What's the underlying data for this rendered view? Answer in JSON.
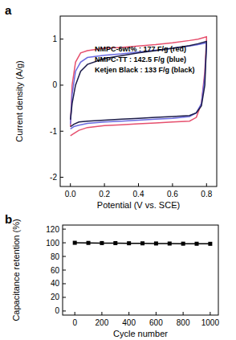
{
  "chart_data": [
    {
      "type": "line",
      "title": "a",
      "x_label": "Potential (V vs. SCE)",
      "y_label": "Current density (A/g)",
      "x": [
        0,
        0.01,
        0.03,
        0.06,
        0.1,
        0.2,
        0.3,
        0.4,
        0.5,
        0.6,
        0.7,
        0.75,
        0.8,
        0.8,
        0.79,
        0.77,
        0.74,
        0.7,
        0.6,
        0.5,
        0.4,
        0.3,
        0.2,
        0.1,
        0.05,
        0.02,
        0
      ],
      "series": [
        {
          "name": "NMPC-6wt% : 177 F/g (red)",
          "color": "#e6506e",
          "values": [
            -0.9,
            0.0,
            0.5,
            0.7,
            0.75,
            0.8,
            0.82,
            0.85,
            0.88,
            0.92,
            0.97,
            1.0,
            1.05,
            1.0,
            0.3,
            -0.4,
            -0.7,
            -0.78,
            -0.8,
            -0.82,
            -0.84,
            -0.86,
            -0.88,
            -0.92,
            -0.98,
            -1.05,
            -1.1
          ]
        },
        {
          "name": "NMPC-TT : 142.5 F/g (blue)",
          "color": "#6a6ae0",
          "values": [
            -0.85,
            -0.2,
            0.3,
            0.5,
            0.6,
            0.65,
            0.68,
            0.72,
            0.76,
            0.8,
            0.85,
            0.88,
            0.92,
            0.85,
            0.2,
            -0.4,
            -0.6,
            -0.68,
            -0.72,
            -0.74,
            -0.76,
            -0.78,
            -0.8,
            -0.83,
            -0.87,
            -0.9,
            -0.95
          ]
        },
        {
          "name": "Ketjen Black : 133 F/g (black)",
          "color": "#1c1c4a",
          "values": [
            -0.75,
            -0.4,
            0.0,
            0.3,
            0.45,
            0.58,
            0.64,
            0.7,
            0.75,
            0.8,
            0.86,
            0.9,
            0.95,
            0.9,
            0.0,
            -0.45,
            -0.6,
            -0.66,
            -0.68,
            -0.7,
            -0.72,
            -0.74,
            -0.76,
            -0.78,
            -0.8,
            -0.85,
            -0.9
          ]
        }
      ],
      "xlim": [
        -0.06,
        0.86
      ],
      "ylim": [
        -2.2,
        1.5
      ],
      "xticks": [
        {
          "value": 0,
          "label": "0.0"
        },
        0.2,
        0.4,
        0.6,
        0.8
      ],
      "yticks": [
        -2,
        -1,
        0,
        1
      ],
      "legend": "center"
    },
    {
      "type": "line",
      "title": "b",
      "x_label": "Cycle number",
      "y_label": "Capacitance retention (%)",
      "x": [
        0,
        100,
        200,
        300,
        400,
        500,
        600,
        700,
        800,
        900,
        1000
      ],
      "series": [
        {
          "color": "#000000",
          "marker": "square",
          "values": [
            100,
            99.8,
            99.6,
            99.5,
            99.3,
            99.2,
            99.0,
            98.9,
            98.7,
            98.6,
            98.5
          ]
        }
      ],
      "xlim": [
        -90,
        1060
      ],
      "ylim": [
        -6,
        126
      ],
      "xticks": [
        0,
        200,
        400,
        600,
        800,
        1000
      ],
      "yticks": [
        0,
        20,
        40,
        60,
        80,
        100,
        120
      ]
    }
  ]
}
